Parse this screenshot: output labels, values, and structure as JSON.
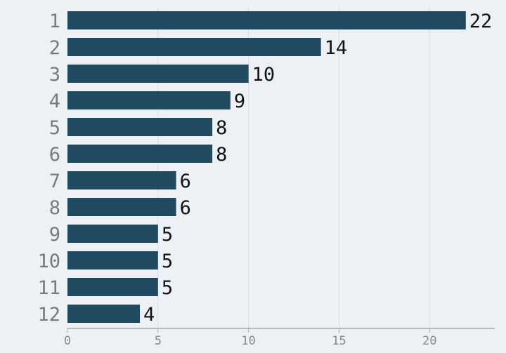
{
  "chart_data": {
    "type": "bar",
    "orientation": "horizontal",
    "categories": [
      "1",
      "2",
      "3",
      "4",
      "5",
      "6",
      "7",
      "8",
      "9",
      "10",
      "11",
      "12"
    ],
    "values": [
      22,
      14,
      10,
      9,
      8,
      8,
      6,
      6,
      5,
      5,
      5,
      4
    ],
    "title": "",
    "xlabel": "",
    "ylabel": "",
    "xlim": [
      0,
      23.6
    ],
    "xticks": [
      0,
      5,
      10,
      15,
      20
    ],
    "grid": true,
    "data_labels": true,
    "colors": {
      "bar": "#1f4a60",
      "background": "#edf1f5",
      "grid": "#d6dde3",
      "axis": "#a8a8a8"
    }
  }
}
